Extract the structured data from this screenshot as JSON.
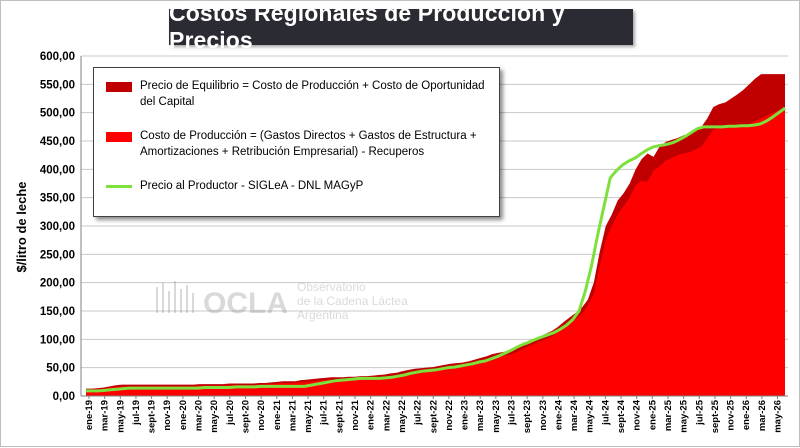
{
  "title": "Costos Regionales de Producción y Precios",
  "ylabel": "$/litro de leche",
  "colors": {
    "equilibrio": "#c00000",
    "produccion": "#ff0000",
    "productor": "#7de03b"
  },
  "legend": [
    {
      "label": "Precio de Equilibrio = Costo de Producción + Costo de Oportunidad del Capital",
      "color": "#c00000",
      "kind": "area"
    },
    {
      "label": "Costo de Producción = (Gastos Directos + Gastos de Estructura + Amortizaciones + Retribución Empresarial) - Recuperos",
      "color": "#ff0000",
      "kind": "area"
    },
    {
      "label": "Precio al Productor - SIGLeA - DNL MAGyP",
      "color": "#7de03b",
      "kind": "line"
    }
  ],
  "watermark": {
    "brand": "OCLA",
    "line1": "Observatorio",
    "line2": "de la Cadena Láctea",
    "line3": "Argentina"
  },
  "chart_data": {
    "type": "area",
    "title": "Costos Regionales de Producción y Precios",
    "xlabel": "",
    "ylabel": "$/litro de leche",
    "ylim": [
      0,
      600
    ],
    "yticks": [
      "0,00",
      "50,00",
      "100,00",
      "150,00",
      "200,00",
      "250,00",
      "300,00",
      "350,00",
      "400,00",
      "450,00",
      "500,00",
      "550,00",
      "600,00"
    ],
    "grid": true,
    "legend_position": "top-left",
    "x_tick_labels": [
      "ene-19",
      "mar-19",
      "may-19",
      "jul-19",
      "sept-19",
      "nov-19",
      "ene-20",
      "mar-20",
      "may-20",
      "jul-20",
      "sept-20",
      "nov-20",
      "ene-21",
      "mar-21",
      "may-21",
      "jul-21",
      "sept-21",
      "nov-21",
      "ene-22",
      "mar-22",
      "may-22",
      "jul-22",
      "sept-22",
      "nov-22",
      "ene-23",
      "mar-23",
      "may-23",
      "jul-23",
      "sept-23",
      "nov-23",
      "ene-24",
      "mar-24",
      "may-24",
      "jul-24",
      "sept-24",
      "nov-24",
      "ene-25",
      "mar-25",
      "may-25",
      "jul-25",
      "sept-25",
      "nov-25",
      "ene-26",
      "mar-26",
      "may-26"
    ],
    "x_months": 89,
    "series": [
      {
        "name": "Precio de Equilibrio = Costo de Producción + Costo de Oportunidad del Capital",
        "type": "area",
        "values": [
          13,
          13,
          14,
          15,
          17,
          19,
          20,
          20,
          20,
          20,
          20,
          20,
          20,
          20,
          20,
          20,
          20,
          20,
          20,
          21,
          21,
          21,
          21,
          21,
          22,
          22,
          22,
          22,
          22,
          23,
          23,
          24,
          25,
          26,
          26,
          26,
          28,
          29,
          30,
          31,
          32,
          33,
          33,
          33,
          34,
          34,
          35,
          35,
          36,
          37,
          38,
          40,
          41,
          44,
          46,
          48,
          49,
          50,
          51,
          53,
          55,
          57,
          58,
          59,
          61,
          64,
          67,
          70,
          74,
          76,
          78,
          80,
          84,
          90,
          97,
          101,
          105,
          110,
          115,
          122,
          131,
          139,
          147,
          156,
          170,
          200,
          255,
          300,
          320,
          345,
          358,
          375,
          400,
          418,
          428,
          422,
          440,
          448,
          452,
          455,
          460,
          463,
          468,
          475,
          490,
          510,
          515,
          518,
          525,
          532,
          540,
          550,
          560,
          568,
          568,
          568,
          568,
          568
        ]
      },
      {
        "name": "Costo de Producción = (Gastos Directos + Gastos de Estructura + Amortizaciones + Retribución Empresarial) - Recuperos",
        "type": "area",
        "values": [
          11,
          11,
          12,
          13,
          15,
          16,
          17,
          17,
          17,
          17,
          17,
          17,
          17,
          17,
          17,
          17,
          17,
          17,
          17,
          18,
          18,
          18,
          18,
          18,
          19,
          19,
          19,
          19,
          19,
          20,
          20,
          21,
          22,
          23,
          23,
          23,
          24,
          25,
          26,
          27,
          28,
          29,
          29,
          29,
          30,
          30,
          31,
          31,
          32,
          33,
          34,
          35,
          36,
          39,
          41,
          43,
          44,
          45,
          46,
          48,
          50,
          51,
          52,
          53,
          55,
          58,
          60,
          63,
          67,
          69,
          71,
          73,
          77,
          82,
          88,
          92,
          96,
          101,
          105,
          112,
          120,
          128,
          136,
          145,
          160,
          180,
          230,
          275,
          300,
          320,
          335,
          350,
          372,
          380,
          378,
          398,
          405,
          415,
          420,
          425,
          428,
          430,
          435,
          440,
          455,
          470,
          472,
          473,
          475,
          476,
          478,
          480,
          485,
          490,
          495,
          500,
          505,
          508
        ]
      },
      {
        "name": "Precio al Productor - SIGLeA - DNL MAGyP",
        "type": "line",
        "values": [
          9,
          9,
          9,
          10,
          11,
          12,
          13,
          14,
          14,
          14,
          14,
          14,
          14,
          14,
          14,
          14,
          14,
          14,
          14,
          15,
          15,
          15,
          15,
          15,
          16,
          16,
          16,
          16,
          17,
          17,
          17,
          17,
          17,
          17,
          17,
          17,
          19,
          21,
          23,
          25,
          27,
          28,
          29,
          30,
          31,
          31,
          31,
          31,
          32,
          33,
          35,
          37,
          40,
          42,
          44,
          45,
          46,
          48,
          50,
          51,
          53,
          55,
          57,
          60,
          62,
          66,
          70,
          75,
          80,
          86,
          91,
          95,
          100,
          104,
          108,
          112,
          118,
          125,
          135,
          150,
          185,
          230,
          285,
          335,
          385,
          398,
          408,
          415,
          420,
          428,
          435,
          440,
          442,
          444,
          447,
          452,
          458,
          465,
          472,
          475,
          475,
          475,
          475,
          476,
          476,
          477,
          477,
          478,
          480,
          485,
          492,
          500,
          508
        ]
      }
    ]
  }
}
